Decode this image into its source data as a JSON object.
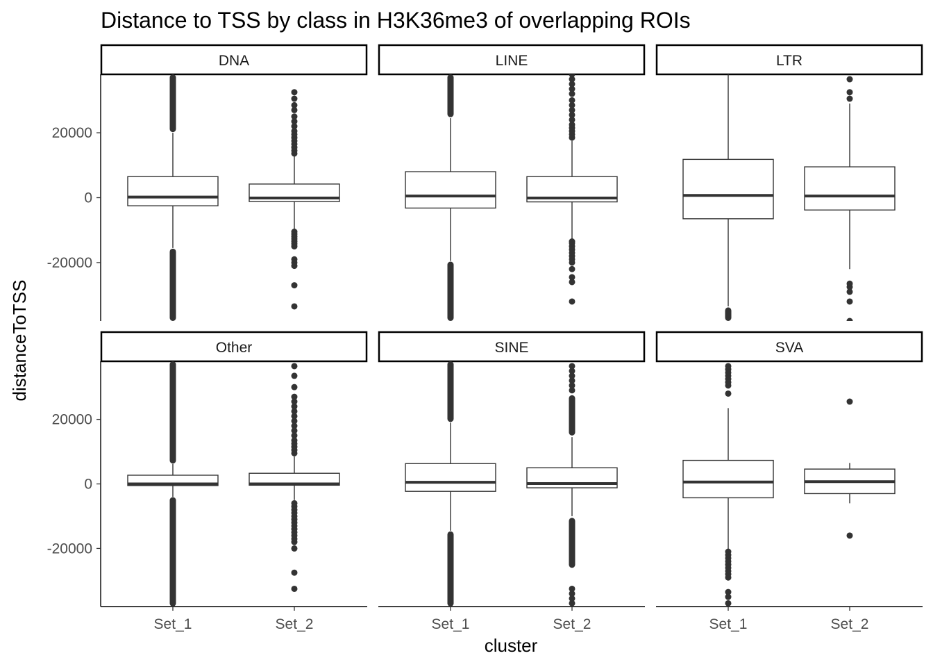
{
  "chart_data": {
    "type": "boxplot",
    "title": "Distance to TSS by class in H3K36me3 of overlapping ROIs",
    "xlabel": "cluster",
    "ylabel": "distanceToTSS",
    "categories": [
      "Set_1",
      "Set_2"
    ],
    "ylim": [
      -38000,
      38000
    ],
    "yticks": [
      -20000,
      0,
      20000
    ],
    "ytick_labels": [
      "-20000",
      "0",
      "20000"
    ],
    "facet_layout": "2 rows x 3 columns",
    "facets": [
      {
        "name": "DNA",
        "boxes": [
          {
            "cluster": "Set_1",
            "q1": -2500,
            "median": 200,
            "q3": 6500,
            "whisker_low": -15500,
            "whisker_high": 20000,
            "outlier_bands": [
              [
                -38000,
                -15700
              ],
              [
                20200,
                38000
              ]
            ],
            "outliers": []
          },
          {
            "cluster": "Set_2",
            "q1": -1200,
            "median": -100,
            "q3": 4200,
            "whisker_low": -10000,
            "whisker_high": 13000,
            "outlier_bands": [],
            "outliers": [
              -33500,
              -27000,
              -21000,
              -20000,
              -19000,
              -15000,
              -14200,
              -13500,
              -12700,
              -12000,
              -11200,
              -10500,
              13600,
              14500,
              15500,
              16500,
              17500,
              18500,
              19500,
              20500,
              22000,
              23500,
              25000,
              27000,
              28500,
              30500,
              32500
            ]
          }
        ]
      },
      {
        "name": "LINE",
        "boxes": [
          {
            "cluster": "Set_1",
            "q1": -3200,
            "median": 500,
            "q3": 8000,
            "whisker_low": -19500,
            "whisker_high": 24500,
            "outlier_bands": [
              [
                -38000,
                -19700
              ],
              [
                24800,
                38000
              ]
            ],
            "outliers": []
          },
          {
            "cluster": "Set_2",
            "q1": -1300,
            "median": -100,
            "q3": 6500,
            "whisker_low": -13000,
            "whisker_high": 17500,
            "outlier_bands": [],
            "outliers": [
              -32000,
              -26000,
              -24500,
              -22000,
              -20000,
              -19000,
              -18000,
              -17000,
              -16000,
              -15000,
              -14000,
              -13500,
              18500,
              19500,
              20500,
              21500,
              22500,
              24000,
              25500,
              27000,
              28500,
              30000,
              32000,
              33500,
              35000,
              36500,
              38000
            ]
          }
        ]
      },
      {
        "name": "LTR",
        "boxes": [
          {
            "cluster": "Set_1",
            "q1": -6500,
            "median": 700,
            "q3": 11800,
            "whisker_low": -33500,
            "whisker_high": 38000,
            "outlier_bands": [
              [
                -38000,
                -33800
              ]
            ],
            "outliers": []
          },
          {
            "cluster": "Set_2",
            "q1": -3800,
            "median": 500,
            "q3": 9500,
            "whisker_low": -22000,
            "whisker_high": 29000,
            "outlier_bands": [],
            "outliers": [
              -38000,
              -32000,
              -29000,
              -27500,
              -26500,
              30500,
              32500,
              36500
            ]
          }
        ]
      },
      {
        "name": "Other",
        "boxes": [
          {
            "cluster": "Set_1",
            "q1": -500,
            "median": 0,
            "q3": 2700,
            "whisker_low": -4000,
            "whisker_high": 6200,
            "outlier_bands": [
              [
                -38000,
                -4100
              ],
              [
                6300,
                38000
              ]
            ],
            "outliers": []
          },
          {
            "cluster": "Set_2",
            "q1": -400,
            "median": 0,
            "q3": 3300,
            "whisker_low": -5000,
            "whisker_high": 8500,
            "outlier_bands": [],
            "outliers": [
              -32500,
              -27500,
              -20000,
              -18000,
              -17000,
              -16000,
              -15000,
              -14000,
              -13000,
              -12000,
              -11000,
              -10000,
              -9000,
              -8000,
              -7000,
              -6000,
              9500,
              10500,
              11500,
              12500,
              13500,
              15000,
              16500,
              18000,
              19500,
              21000,
              22500,
              24000,
              25500,
              27000,
              30000,
              33500,
              36500
            ]
          }
        ]
      },
      {
        "name": "SINE",
        "boxes": [
          {
            "cluster": "Set_1",
            "q1": -2300,
            "median": 500,
            "q3": 6300,
            "whisker_low": -14500,
            "whisker_high": 19000,
            "outlier_bands": [
              [
                -38000,
                -14700
              ],
              [
                19200,
                38000
              ]
            ],
            "outliers": []
          },
          {
            "cluster": "Set_2",
            "q1": -1200,
            "median": 100,
            "q3": 5000,
            "whisker_low": -10000,
            "whisker_high": 14500,
            "outlier_bands": [
              [
                -26000,
                -10500
              ],
              [
                15000,
                27500
              ]
            ],
            "outliers": [
              -37000,
              -35500,
              -34000,
              -32500,
              29000,
              30500,
              32000,
              33500,
              35000,
              36500
            ]
          }
        ]
      },
      {
        "name": "SVA",
        "boxes": [
          {
            "cluster": "Set_1",
            "q1": -4300,
            "median": 600,
            "q3": 7300,
            "whisker_low": -20500,
            "whisker_high": 23500,
            "outlier_bands": [],
            "outliers": [
              -37000,
              -35000,
              -33500,
              -29000,
              -28000,
              -27000,
              -26000,
              -25000,
              -24000,
              -23000,
              -22000,
              -21000,
              28000,
              30500,
              31500,
              32500,
              33500,
              34500,
              35500,
              36500
            ]
          },
          {
            "cluster": "Set_2",
            "q1": -3000,
            "median": 700,
            "q3": 4600,
            "whisker_low": -6000,
            "whisker_high": 6500,
            "outlier_bands": [],
            "outliers": [
              -16000,
              25500
            ]
          }
        ]
      }
    ]
  }
}
